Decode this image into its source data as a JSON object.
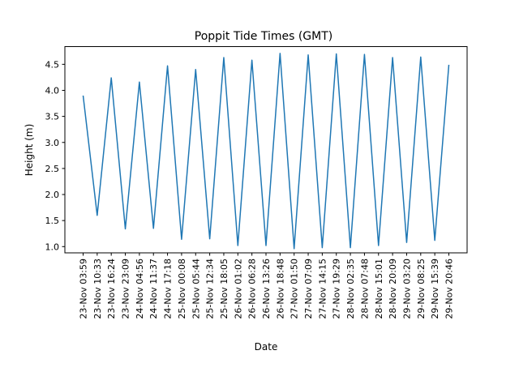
{
  "chart_data": {
    "type": "line",
    "title": "Poppit Tide Times (GMT)",
    "xlabel": "Date",
    "ylabel": "Height (m)",
    "ylim": [
      0.88,
      4.84
    ],
    "yticks": [
      1.0,
      1.5,
      2.0,
      2.5,
      3.0,
      3.5,
      4.0,
      4.5
    ],
    "ytick_labels": [
      "1.0",
      "1.5",
      "2.0",
      "2.5",
      "3.0",
      "3.5",
      "4.0",
      "4.5"
    ],
    "grid": false,
    "legend": "none",
    "line_color": "#1f77b4",
    "x": [
      "23-Nov 03:59",
      "23-Nov 10:33",
      "23-Nov 16:24",
      "23-Nov 23:09",
      "24-Nov 04:56",
      "24-Nov 11:37",
      "24-Nov 17:18",
      "25-Nov 00:08",
      "25-Nov 05:44",
      "25-Nov 12:34",
      "25-Nov 18:05",
      "26-Nov 01:02",
      "26-Nov 06:28",
      "26-Nov 13:26",
      "26-Nov 18:48",
      "27-Nov 01:50",
      "27-Nov 07:09",
      "27-Nov 14:15",
      "27-Nov 19:29",
      "28-Nov 02:35",
      "28-Nov 07:48",
      "28-Nov 15:01",
      "28-Nov 20:09",
      "29-Nov 03:20",
      "29-Nov 08:25",
      "29-Nov 15:39",
      "29-Nov 20:46"
    ],
    "y": [
      3.9,
      1.6,
      4.24,
      1.34,
      4.16,
      1.35,
      4.47,
      1.14,
      4.4,
      1.15,
      4.63,
      1.02,
      4.58,
      1.02,
      4.71,
      0.96,
      4.68,
      0.98,
      4.7,
      0.98,
      4.69,
      1.02,
      4.63,
      1.08,
      4.64,
      1.12,
      4.49
    ]
  }
}
